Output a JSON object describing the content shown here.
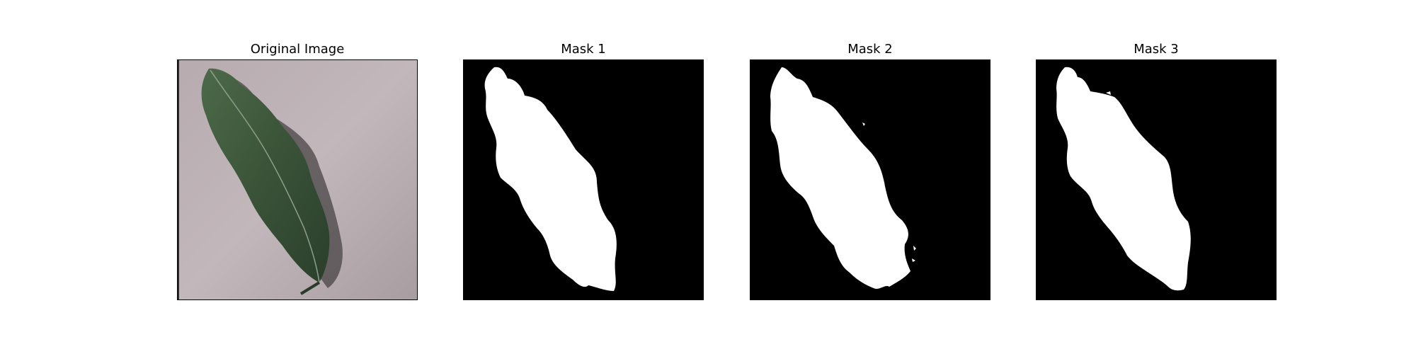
{
  "figure": {
    "panels": [
      {
        "title": "Original Image",
        "kind": "photo"
      },
      {
        "title": "Mask 1",
        "kind": "mask"
      },
      {
        "title": "Mask 2",
        "kind": "mask"
      },
      {
        "title": "Mask 3",
        "kind": "mask"
      }
    ],
    "colors": {
      "background": "#ffffff",
      "mask_background": "#000000",
      "mask_foreground": "#ffffff",
      "leaf_green": "#3d5a3c",
      "photo_background": "#b6aaae"
    }
  }
}
